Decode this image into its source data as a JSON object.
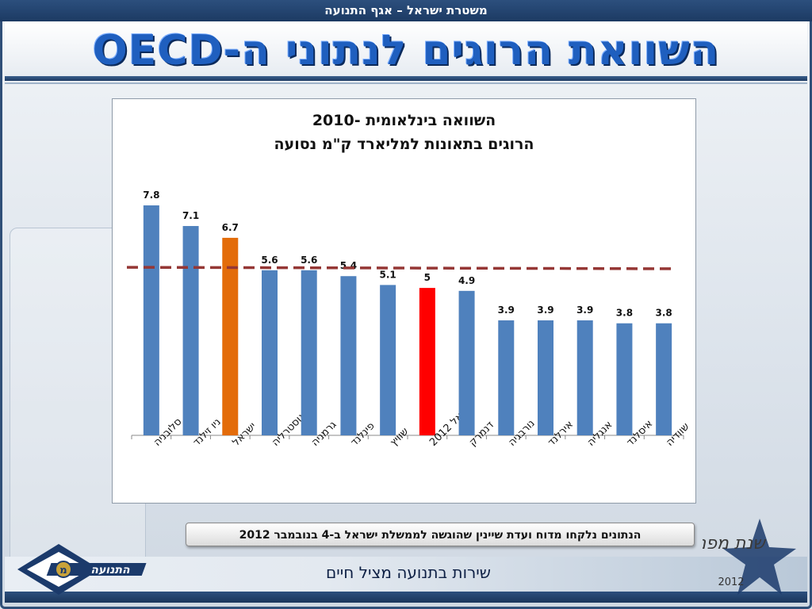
{
  "header": {
    "org": "משטרת ישראל – אגף התנועה",
    "title": "השוואת הרוגים לנתוני ה-OECD"
  },
  "colors": {
    "bar": "#4f81bd",
    "israel_highlight": "#e36c0a",
    "israel2012_highlight": "#ff0000",
    "reference_line": "#953735"
  },
  "chart_data": {
    "type": "bar",
    "title": "השוואה בינלאומית -2010",
    "subtitle": "הרוגים בתאונות למליארד ק\"מ נסועה",
    "categories": [
      "סלובניה",
      "ניו זילנד",
      "ישראל",
      "אוסטרליה",
      "גרמניה",
      "פינלנד",
      "שוויץ",
      "ישראל 2012",
      "דנמרק",
      "נורבגיה",
      "אירלנד",
      "אנגליה",
      "איסלנד",
      "שוודיה"
    ],
    "values": [
      7.8,
      7.1,
      6.7,
      5.6,
      5.6,
      5.4,
      5.1,
      5,
      4.9,
      3.9,
      3.9,
      3.9,
      3.8,
      3.8
    ],
    "data_labels": [
      "7.8",
      "7.1",
      "6.7",
      "5.6",
      "5.6",
      "5.4",
      "5.1",
      "5",
      "4.9",
      "3.9",
      "3.9",
      "3.9",
      "3.8",
      "3.8"
    ],
    "highlight": {
      "ישראל": "#e36c0a",
      "ישראל 2012": "#ff0000"
    },
    "reference_line": {
      "y_start": 5.7,
      "y_end": 5.65,
      "style": "dashed"
    },
    "ylim": [
      0,
      9
    ],
    "xlabel": "",
    "ylabel": "",
    "grid": false,
    "legend": "none"
  },
  "source_note": "הנתונים נלקחו מדוח ועדת שיינין שהוגשה לממשלת ישראל ב-4 בנובמבר 2012",
  "footer": {
    "slogan": "שירות בתנועה מציל חיים",
    "logo_left_text": "התנועה",
    "logo_left_letter": "מ",
    "logo_right_text": "שנת מפנה",
    "logo_right_year": "2012"
  }
}
